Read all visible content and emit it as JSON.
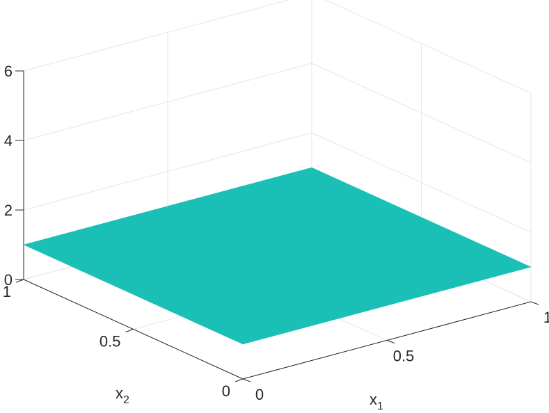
{
  "chart_data": {
    "type": "surface",
    "title": "",
    "xlabel": "x",
    "xlabel_subscript": "1",
    "ylabel": "x",
    "ylabel_subscript": "2",
    "zlabel": "",
    "x": [
      0,
      1
    ],
    "y": [
      0,
      1
    ],
    "z": [
      [
        1,
        1
      ],
      [
        1,
        1
      ]
    ],
    "xlim": [
      0,
      1
    ],
    "ylim": [
      0,
      1
    ],
    "zlim": [
      0,
      6
    ],
    "xticks": [
      0,
      0.5,
      1
    ],
    "yticks": [
      0,
      0.5,
      1
    ],
    "zticks": [
      0,
      2,
      4,
      6
    ],
    "xtick_labels": [
      "0",
      "0.5",
      "1"
    ],
    "ytick_labels": [
      "0",
      "0.5",
      "1"
    ],
    "ztick_labels": [
      "0",
      "2",
      "4",
      "6"
    ],
    "grid": true,
    "surface_color": "#1ABFB5",
    "grid_color": "#E6E6E6",
    "axis_color": "#262626"
  }
}
